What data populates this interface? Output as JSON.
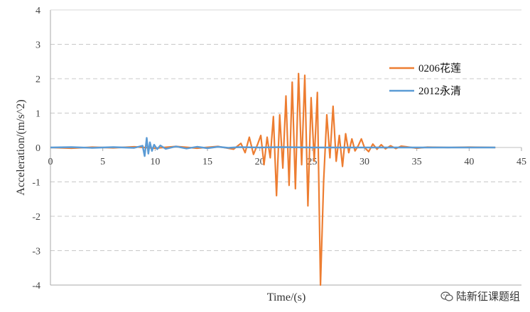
{
  "chart_data": {
    "type": "line",
    "xlabel": "Time/(s)",
    "ylabel": "Acceleration/(m/s^2)",
    "xlim": [
      0,
      45
    ],
    "ylim": [
      -4,
      4
    ],
    "xticks": [
      0,
      5,
      10,
      15,
      20,
      25,
      30,
      35,
      40,
      45
    ],
    "yticks": [
      -4,
      -3,
      -2,
      -1,
      0,
      1,
      2,
      3,
      4
    ],
    "grid": "horizontal dashed",
    "legend_position": "right",
    "series": [
      {
        "name": "0206花莲",
        "color": "#ED7D31",
        "x": [
          0,
          2,
          4,
          6,
          8,
          10,
          12,
          14,
          16,
          17.5,
          18.2,
          18.6,
          19.0,
          19.4,
          19.8,
          20.1,
          20.4,
          20.7,
          21.0,
          21.3,
          21.6,
          21.9,
          22.2,
          22.5,
          22.8,
          23.1,
          23.4,
          23.7,
          24.0,
          24.3,
          24.6,
          24.9,
          25.2,
          25.5,
          25.8,
          26.1,
          26.4,
          26.7,
          27.0,
          27.3,
          27.6,
          27.9,
          28.2,
          28.5,
          28.8,
          29.1,
          29.4,
          29.7,
          30.0,
          30.4,
          30.8,
          31.2,
          31.6,
          32.0,
          32.5,
          33.0,
          33.5,
          34.0,
          35.0,
          36.0,
          38.0,
          40.0,
          42.5
        ],
        "y": [
          0,
          -0.02,
          0.01,
          -0.01,
          0.02,
          -0.02,
          0.03,
          -0.02,
          0.03,
          -0.05,
          0.12,
          -0.15,
          0.3,
          -0.2,
          0.1,
          0.35,
          -0.5,
          0.3,
          -0.3,
          0.9,
          -1.4,
          0.95,
          -0.6,
          1.5,
          -1.1,
          1.9,
          -1.2,
          2.15,
          -0.5,
          2.1,
          -1.7,
          1.45,
          -0.4,
          1.6,
          -4.0,
          -1.0,
          0.95,
          -0.3,
          1.2,
          -0.4,
          0.35,
          -0.55,
          0.4,
          -0.15,
          0.25,
          -0.1,
          0.05,
          0.25,
          0.0,
          -0.12,
          0.1,
          -0.05,
          0.08,
          -0.04,
          0.05,
          -0.03,
          0.04,
          0.02,
          -0.02,
          0.01,
          0.0,
          0.01,
          0.0
        ]
      },
      {
        "name": "2012永清",
        "color": "#5B9BD5",
        "x": [
          0,
          2,
          4,
          6,
          8,
          8.8,
          9.0,
          9.2,
          9.35,
          9.5,
          9.7,
          9.9,
          10.2,
          10.5,
          11,
          12,
          13,
          14,
          15,
          16,
          17,
          18,
          20,
          22,
          25,
          28,
          30,
          33,
          35,
          38,
          40,
          42.5
        ],
        "y": [
          0,
          0.01,
          -0.01,
          0.01,
          -0.01,
          0.05,
          -0.25,
          0.28,
          -0.18,
          0.15,
          -0.1,
          0.08,
          -0.05,
          0.06,
          -0.04,
          0.03,
          -0.03,
          0.02,
          -0.02,
          0.02,
          -0.01,
          0.01,
          0.0,
          0.01,
          0.0,
          0.0,
          0.0,
          0.0,
          0.0,
          0.0,
          0.0,
          0.0
        ]
      }
    ]
  },
  "watermark": {
    "text": "陆新征课题组",
    "icon": "wechat-icon"
  }
}
